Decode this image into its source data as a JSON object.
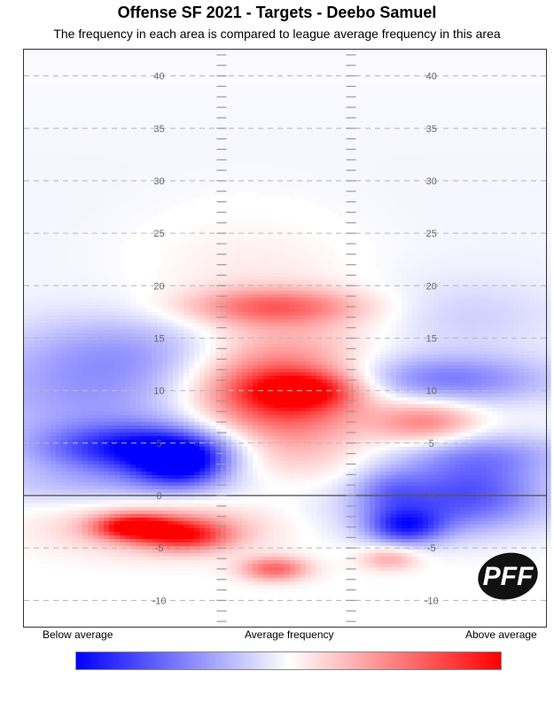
{
  "title": "Offense SF 2021 - Targets - Deebo Samuel",
  "subtitle": "The frequency in each area is compared to league average frequency in this area",
  "legend": {
    "below": "Below average",
    "average": "Average frequency",
    "above": "Above average",
    "colors": {
      "low": "#0000ff",
      "mid": "#ffffff",
      "high": "#ff0000"
    }
  },
  "logo": {
    "text": "PFF",
    "color": "#111111"
  },
  "chart_data": {
    "type": "heatmap",
    "xlabel": "",
    "ylabel": "",
    "ylim": [
      -12.5,
      42.5
    ],
    "y_ticks": [
      -10,
      -5,
      0,
      5,
      10,
      15,
      20,
      25,
      30,
      35,
      40
    ],
    "y_tick_labels": [
      "-10",
      "-5",
      "0",
      "5",
      "10",
      "15",
      "20",
      "25",
      "30",
      "35",
      "40"
    ],
    "line_of_scrimmage": 0,
    "grid": "dashed horizontal every 5 yards",
    "value_scale": "frequency relative to league average (-1 = below, 0 = average, 1 = above)",
    "field_zones": [
      "left outside",
      "left hash",
      "middle",
      "right hash",
      "right outside"
    ],
    "hotspots": [
      {
        "zone": "left",
        "x_frac": 0.22,
        "yard": 4.5,
        "value": -0.85,
        "sx": 0.13,
        "sy": 1.6
      },
      {
        "zone": "left",
        "x_frac": 0.3,
        "yard": 3,
        "value": -0.8,
        "sx": 0.06,
        "sy": 1.5
      },
      {
        "zone": "left",
        "x_frac": 0.14,
        "yard": 9.5,
        "value": -0.35,
        "sx": 0.2,
        "sy": 3.5
      },
      {
        "zone": "left",
        "x_frac": 0.18,
        "yard": 1,
        "value": -0.25,
        "sx": 0.2,
        "sy": 1.5
      },
      {
        "zone": "left",
        "x_frac": 0.2,
        "yard": 14,
        "value": -0.25,
        "sx": 0.15,
        "sy": 2.5
      },
      {
        "zone": "left",
        "x_frac": 0.21,
        "yard": -3,
        "value": 0.9,
        "sx": 0.05,
        "sy": 0.8
      },
      {
        "zone": "left",
        "x_frac": 0.31,
        "yard": -3.8,
        "value": 0.7,
        "sx": 0.06,
        "sy": 1
      },
      {
        "zone": "left",
        "x_frac": 0.26,
        "yard": -3,
        "value": 0.35,
        "sx": 0.14,
        "sy": 1.8
      },
      {
        "zone": "middle",
        "x_frac": 0.48,
        "yard": -7,
        "value": 0.6,
        "sx": 0.045,
        "sy": 0.8
      },
      {
        "zone": "middle",
        "x_frac": 0.48,
        "yard": 10,
        "value": 0.8,
        "sx": 0.12,
        "sy": 2.5
      },
      {
        "zone": "middle",
        "x_frac": 0.54,
        "yard": 10,
        "value": 0.6,
        "sx": 0.07,
        "sy": 1.2
      },
      {
        "zone": "middle",
        "x_frac": 0.5,
        "yard": 5.5,
        "value": 0.35,
        "sx": 0.1,
        "sy": 3
      },
      {
        "zone": "middle",
        "x_frac": 0.48,
        "yard": 18,
        "value": 0.5,
        "sx": 0.12,
        "sy": 1.2
      },
      {
        "zone": "middle",
        "x_frac": 0.49,
        "yard": 15,
        "value": 0.25,
        "sx": 0.12,
        "sy": 3
      },
      {
        "zone": "middle",
        "x_frac": 0.43,
        "yard": 22,
        "value": 0.1,
        "sx": 0.15,
        "sy": 4
      },
      {
        "zone": "right",
        "x_frac": 0.77,
        "yard": 7,
        "value": 0.5,
        "sx": 0.07,
        "sy": 1.5
      },
      {
        "zone": "right",
        "x_frac": 0.7,
        "yard": -6,
        "value": 0.35,
        "sx": 0.04,
        "sy": 0.8
      },
      {
        "zone": "right",
        "x_frac": 0.73,
        "yard": -3,
        "value": -0.65,
        "sx": 0.05,
        "sy": 1.2
      },
      {
        "zone": "right",
        "x_frac": 0.8,
        "yard": -1.5,
        "value": -0.4,
        "sx": 0.14,
        "sy": 2
      },
      {
        "zone": "right",
        "x_frac": 0.86,
        "yard": 1,
        "value": -0.45,
        "sx": 0.1,
        "sy": 2
      },
      {
        "zone": "right",
        "x_frac": 0.8,
        "yard": 11,
        "value": -0.5,
        "sx": 0.15,
        "sy": 1.7
      },
      {
        "zone": "right",
        "x_frac": 0.88,
        "yard": 4,
        "value": -0.35,
        "sx": 0.12,
        "sy": 1.5
      },
      {
        "zone": "right",
        "x_frac": 0.85,
        "yard": 17,
        "value": -0.15,
        "sx": 0.12,
        "sy": 2.5
      },
      {
        "zone": "right",
        "x_frac": 0.7,
        "yard": 0.5,
        "value": -0.3,
        "sx": 0.05,
        "sy": 1.5
      }
    ],
    "legend": "bottom colorbar"
  }
}
